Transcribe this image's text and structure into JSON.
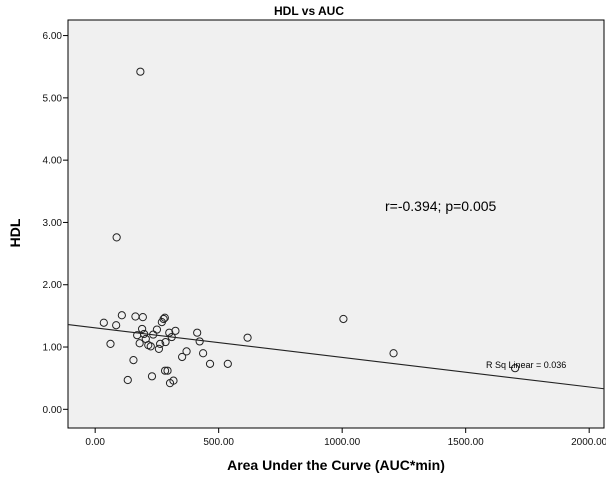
{
  "chart_data": {
    "type": "scatter",
    "title": "HDL vs AUC",
    "xlabel": "Area Under the Curve (AUC*min)",
    "ylabel": "HDL",
    "xlim": [
      -110,
      2060
    ],
    "ylim": [
      -0.3,
      6.25
    ],
    "x_ticks": [
      "0.00",
      "500.00",
      "1000.00",
      "1500.00",
      "2000.00"
    ],
    "x_tick_values": [
      0,
      500,
      1000,
      1500,
      2000
    ],
    "y_ticks": [
      "0.00",
      "1.00",
      "2.00",
      "3.00",
      "4.00",
      "5.00",
      "6.00"
    ],
    "y_tick_values": [
      0,
      1,
      2,
      3,
      4,
      5,
      6
    ],
    "grid": false,
    "annotation": "r=-0.394; p=0.005",
    "fit_line": {
      "label": "R Sq Linear = 0.036",
      "x": [
        -110,
        2060
      ],
      "y": [
        1.36,
        0.33
      ]
    },
    "points": {
      "x": [
        183,
        87,
        35,
        62,
        85,
        108,
        163,
        170,
        193,
        190,
        180,
        198,
        205,
        215,
        225,
        235,
        250,
        258,
        263,
        270,
        277,
        282,
        285,
        300,
        310,
        325,
        352,
        370,
        413,
        423,
        437,
        465,
        537,
        617,
        1005,
        1208,
        1700,
        132,
        155,
        230,
        283,
        293,
        303,
        317
      ],
      "y": [
        5.42,
        2.76,
        1.39,
        1.05,
        1.35,
        1.51,
        1.49,
        1.19,
        1.48,
        1.29,
        1.06,
        1.21,
        1.13,
        1.03,
        1.01,
        1.2,
        1.28,
        0.97,
        1.05,
        1.4,
        1.45,
        1.47,
        1.08,
        1.23,
        1.16,
        1.26,
        0.84,
        0.93,
        1.23,
        1.09,
        0.9,
        0.73,
        0.73,
        1.15,
        1.45,
        0.9,
        0.66,
        0.47,
        0.79,
        0.53,
        0.62,
        0.62,
        0.42,
        0.46
      ]
    }
  }
}
